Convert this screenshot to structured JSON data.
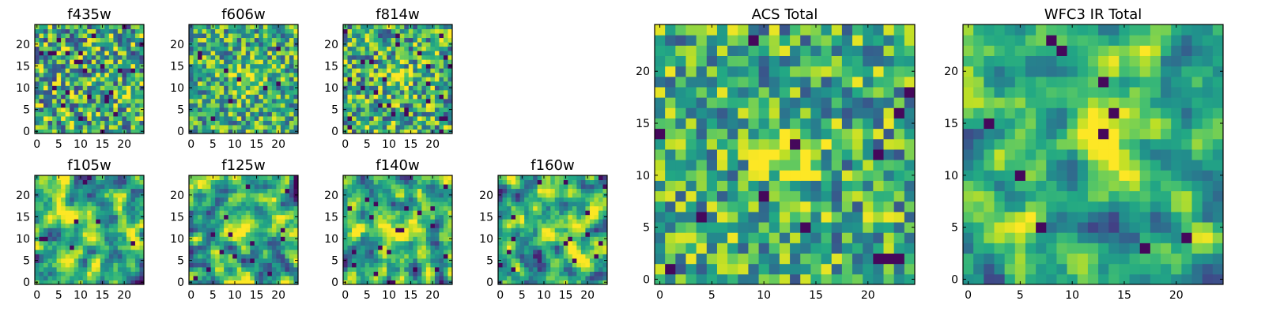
{
  "chart_data": [
    {
      "type": "heatmap",
      "title": "f435w",
      "size": 25,
      "seed": 11,
      "contrast": 0.55,
      "blob": 0.0,
      "blob_center": [
        12,
        12
      ],
      "smooth": 0,
      "dark": 0.04,
      "x_ticks": [
        0,
        5,
        10,
        15,
        20
      ],
      "y_ticks": [
        0,
        5,
        10,
        15,
        20
      ],
      "xlim": [
        -0.5,
        24.5
      ],
      "ylim": [
        -0.5,
        24.5
      ],
      "colormap": "viridis"
    },
    {
      "type": "heatmap",
      "title": "f606w",
      "size": 25,
      "seed": 23,
      "contrast": 0.45,
      "blob": 0.35,
      "blob_center": [
        13,
        12
      ],
      "smooth": 0,
      "dark": 0.02,
      "x_ticks": [
        0,
        5,
        10,
        15,
        20
      ],
      "y_ticks": [
        0,
        5,
        10,
        15,
        20
      ],
      "xlim": [
        -0.5,
        24.5
      ],
      "ylim": [
        -0.5,
        24.5
      ],
      "colormap": "viridis"
    },
    {
      "type": "heatmap",
      "title": "f814w",
      "size": 25,
      "seed": 37,
      "contrast": 0.5,
      "blob": 0.3,
      "blob_center": [
        12,
        12
      ],
      "smooth": 0,
      "dark": 0.035,
      "x_ticks": [
        0,
        5,
        10,
        15,
        20
      ],
      "y_ticks": [
        0,
        5,
        10,
        15,
        20
      ],
      "xlim": [
        -0.5,
        24.5
      ],
      "ylim": [
        -0.5,
        24.5
      ],
      "colormap": "viridis"
    },
    {
      "type": "heatmap",
      "title": "f105w",
      "size": 25,
      "seed": 41,
      "contrast": 0.55,
      "blob": 0.35,
      "blob_center": [
        13,
        12
      ],
      "smooth": 1,
      "dark": 0.02,
      "x_ticks": [
        0,
        5,
        10,
        15,
        20
      ],
      "y_ticks": [
        0,
        5,
        10,
        15,
        20
      ],
      "xlim": [
        -0.5,
        24.5
      ],
      "ylim": [
        -0.5,
        24.5
      ],
      "colormap": "viridis"
    },
    {
      "type": "heatmap",
      "title": "f125w",
      "size": 25,
      "seed": 53,
      "contrast": 0.55,
      "blob": 0.3,
      "blob_center": [
        12,
        12
      ],
      "smooth": 1,
      "dark": 0.015,
      "x_ticks": [
        0,
        5,
        10,
        15,
        20
      ],
      "y_ticks": [
        0,
        5,
        10,
        15,
        20
      ],
      "xlim": [
        -0.5,
        24.5
      ],
      "ylim": [
        -0.5,
        24.5
      ],
      "colormap": "viridis"
    },
    {
      "type": "heatmap",
      "title": "f140w",
      "size": 25,
      "seed": 67,
      "contrast": 0.55,
      "blob": 0.35,
      "blob_center": [
        13,
        13
      ],
      "smooth": 1,
      "dark": 0.02,
      "x_ticks": [
        0,
        5,
        10,
        15,
        20
      ],
      "y_ticks": [
        0,
        5,
        10,
        15,
        20
      ],
      "xlim": [
        -0.5,
        24.5
      ],
      "ylim": [
        -0.5,
        24.5
      ],
      "colormap": "viridis"
    },
    {
      "type": "heatmap",
      "title": "f160w",
      "size": 25,
      "seed": 79,
      "contrast": 0.55,
      "blob": 0.45,
      "blob_center": [
        13,
        12
      ],
      "smooth": 1,
      "dark": 0.02,
      "x_ticks": [
        0,
        5,
        10,
        15,
        20
      ],
      "y_ticks": [
        0,
        5,
        10,
        15,
        20
      ],
      "xlim": [
        -0.5,
        24.5
      ],
      "ylim": [
        -0.5,
        24.5
      ],
      "colormap": "viridis"
    },
    {
      "type": "heatmap",
      "title": "ACS Total",
      "size": 25,
      "seed": 97,
      "contrast": 0.45,
      "blob": 0.45,
      "blob_center": [
        12,
        12
      ],
      "smooth": 0,
      "dark": 0.025,
      "x_ticks": [
        0,
        5,
        10,
        15,
        20
      ],
      "y_ticks": [
        0,
        5,
        10,
        15,
        20
      ],
      "xlim": [
        -0.5,
        24.5
      ],
      "ylim": [
        -0.5,
        24.5
      ],
      "colormap": "viridis"
    },
    {
      "type": "heatmap",
      "title": "WFC3 IR Total",
      "size": 25,
      "seed": 131,
      "contrast": 0.45,
      "blob": 0.6,
      "blob_center": [
        13,
        13
      ],
      "smooth": 1,
      "dark": 0.02,
      "x_ticks": [
        0,
        5,
        10,
        15,
        20
      ],
      "y_ticks": [
        0,
        5,
        10,
        15,
        20
      ],
      "xlim": [
        -0.5,
        24.5
      ],
      "ylim": [
        -0.5,
        24.5
      ],
      "colormap": "viridis"
    }
  ]
}
